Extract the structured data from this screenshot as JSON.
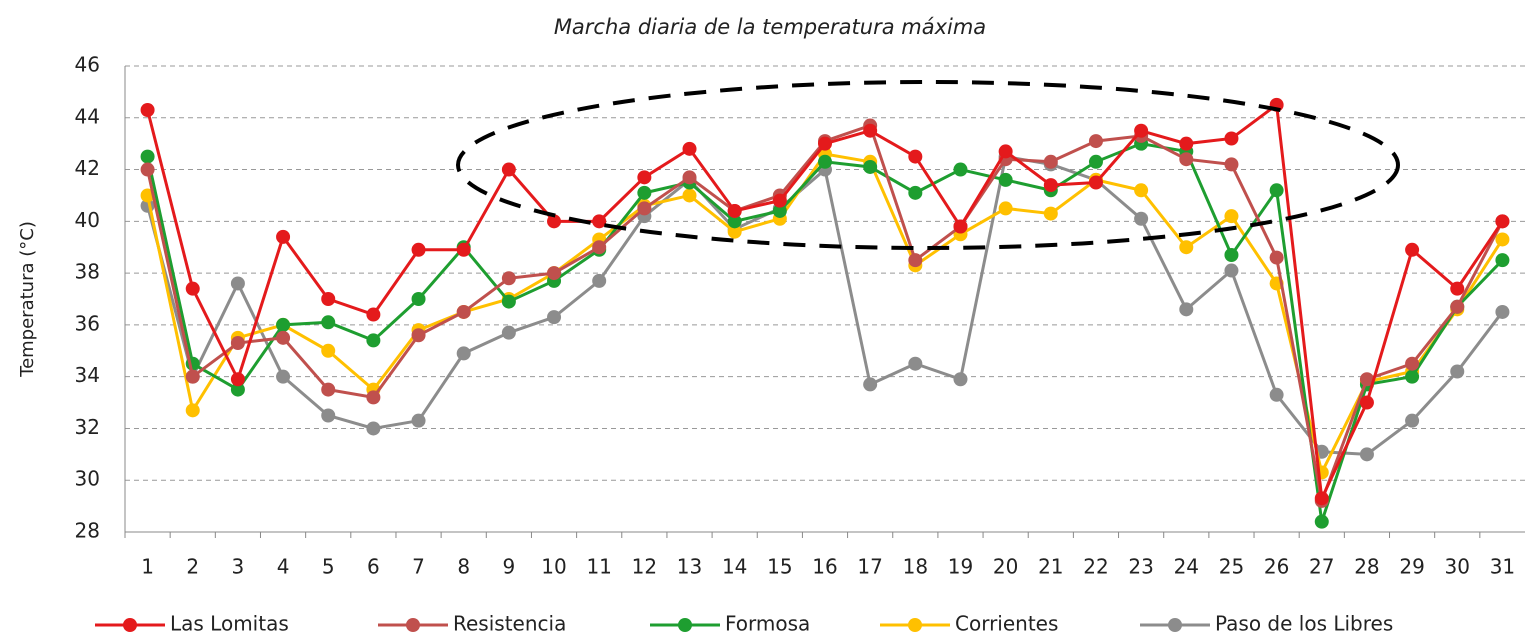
{
  "chart_data": {
    "type": "line",
    "title": "Marcha diaria de la temperatura máxima",
    "y_label": "Temperatura (°C)",
    "categories": [
      1,
      2,
      3,
      4,
      5,
      6,
      7,
      8,
      9,
      10,
      11,
      12,
      13,
      14,
      15,
      16,
      17,
      18,
      19,
      20,
      21,
      22,
      23,
      24,
      25,
      26,
      27,
      28,
      29,
      30,
      31
    ],
    "ylim": [
      28,
      46
    ],
    "yticks": [
      28,
      30,
      32,
      34,
      36,
      38,
      40,
      42,
      44,
      46
    ],
    "grid": true,
    "legend": "bottom",
    "series": [
      {
        "name": "Las Lomitas",
        "color": "#e41a1c",
        "values": [
          44.3,
          37.4,
          33.9,
          39.4,
          37.0,
          36.4,
          38.9,
          38.9,
          42.0,
          40.0,
          40.0,
          41.7,
          42.8,
          40.4,
          40.8,
          43.0,
          43.5,
          42.5,
          39.8,
          42.7,
          41.4,
          41.5,
          43.5,
          43.0,
          43.2,
          44.5,
          29.3,
          33.0,
          38.9,
          37.4,
          40.0
        ]
      },
      {
        "name": "Resistencia",
        "color": "#c0504d",
        "values": [
          42.0,
          34.0,
          35.3,
          35.5,
          33.5,
          33.2,
          35.6,
          36.5,
          37.8,
          38.0,
          39.0,
          40.5,
          41.7,
          40.4,
          41.0,
          43.1,
          43.7,
          38.5,
          39.8,
          42.4,
          42.3,
          43.1,
          43.3,
          42.4,
          42.2,
          38.6,
          29.2,
          33.9,
          34.5,
          36.7,
          40.0
        ]
      },
      {
        "name": "Formosa",
        "color": "#1e9e30",
        "values": [
          42.5,
          34.5,
          33.5,
          36.0,
          36.1,
          35.4,
          37.0,
          39.0,
          36.9,
          37.7,
          38.9,
          41.1,
          41.5,
          40.0,
          40.4,
          42.3,
          42.1,
          41.1,
          42.0,
          41.6,
          41.2,
          42.3,
          43.0,
          42.7,
          38.7,
          41.2,
          28.4,
          33.7,
          34.0,
          36.7,
          38.5
        ]
      },
      {
        "name": "Corrientes",
        "color": "#ffc000",
        "values": [
          41.0,
          32.7,
          35.5,
          36.0,
          35.0,
          33.5,
          35.8,
          36.5,
          37.0,
          38.0,
          39.3,
          40.6,
          41.0,
          39.6,
          40.1,
          42.6,
          42.3,
          38.3,
          39.5,
          40.5,
          40.3,
          41.6,
          41.2,
          39.0,
          40.2,
          37.6,
          30.3,
          33.8,
          34.2,
          36.6,
          39.3
        ]
      },
      {
        "name": "Paso de los Libres",
        "color": "#8c8c8c",
        "values": [
          40.6,
          34.0,
          37.6,
          34.0,
          32.5,
          32.0,
          32.3,
          34.9,
          35.7,
          36.3,
          37.7,
          40.2,
          41.6,
          39.7,
          40.5,
          42.0,
          33.7,
          34.5,
          33.9,
          42.5,
          42.2,
          41.6,
          40.1,
          36.6,
          38.1,
          33.3,
          31.1,
          31.0,
          32.3,
          34.2,
          36.5
        ]
      }
    ]
  }
}
